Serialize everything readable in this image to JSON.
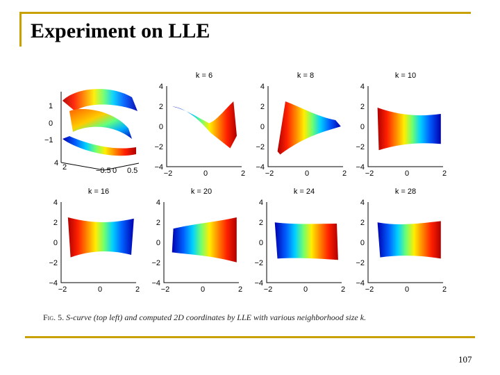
{
  "slide": {
    "title": "Experiment on LLE",
    "page_number": "107"
  },
  "figure": {
    "caption_label": "Fig. 5.",
    "caption_text": "S-curve (top left) and computed 2D coordinates by LLE with various neighborhood size k."
  },
  "chart_data": [
    {
      "type": "scatter",
      "title": "",
      "description_type": "3d-s-curve",
      "z_ticks": [
        "1",
        "0",
        "−1"
      ],
      "y_ticks": [
        "4",
        "2"
      ],
      "x_ticks": [
        "−0.5",
        "0",
        "0.5"
      ],
      "colormap": "jet"
    },
    {
      "type": "scatter",
      "title": "k = 6",
      "xlim": [
        -2,
        2
      ],
      "ylim": [
        -4,
        4
      ],
      "x_ticks": [
        "−2",
        "0",
        "2"
      ],
      "y_ticks": [
        "4",
        "2",
        "0",
        "−2",
        "−4"
      ],
      "colormap": "jet"
    },
    {
      "type": "scatter",
      "title": "k = 8",
      "xlim": [
        -2,
        2
      ],
      "ylim": [
        -4,
        4
      ],
      "x_ticks": [
        "−2",
        "0",
        "2"
      ],
      "y_ticks": [
        "4",
        "2",
        "0",
        "−2",
        "−4"
      ],
      "colormap": "jet"
    },
    {
      "type": "scatter",
      "title": "k = 10",
      "xlim": [
        -2,
        2
      ],
      "ylim": [
        -4,
        4
      ],
      "x_ticks": [
        "−2",
        "0",
        "2"
      ],
      "y_ticks": [
        "4",
        "2",
        "0",
        "−2",
        "−4"
      ],
      "colormap": "jet"
    },
    {
      "type": "scatter",
      "title": "k = 16",
      "xlim": [
        -2,
        2
      ],
      "ylim": [
        -4,
        4
      ],
      "x_ticks": [
        "−2",
        "0",
        "2"
      ],
      "y_ticks": [
        "4",
        "2",
        "0",
        "−2",
        "−4"
      ],
      "colormap": "jet"
    },
    {
      "type": "scatter",
      "title": "k = 20",
      "xlim": [
        -2,
        2
      ],
      "ylim": [
        -4,
        4
      ],
      "x_ticks": [
        "−2",
        "0",
        "2"
      ],
      "y_ticks": [
        "4",
        "2",
        "0",
        "−2",
        "−4"
      ],
      "colormap": "jet"
    },
    {
      "type": "scatter",
      "title": "k = 24",
      "xlim": [
        -2,
        2
      ],
      "ylim": [
        -4,
        4
      ],
      "x_ticks": [
        "−2",
        "0",
        "2"
      ],
      "y_ticks": [
        "4",
        "2",
        "0",
        "−2",
        "−4"
      ],
      "colormap": "jet"
    },
    {
      "type": "scatter",
      "title": "k = 28",
      "xlim": [
        -2,
        2
      ],
      "ylim": [
        -4,
        4
      ],
      "x_ticks": [
        "−2",
        "0",
        "2"
      ],
      "y_ticks": [
        "4",
        "2",
        "0",
        "−2",
        "−4"
      ],
      "colormap": "jet"
    }
  ]
}
